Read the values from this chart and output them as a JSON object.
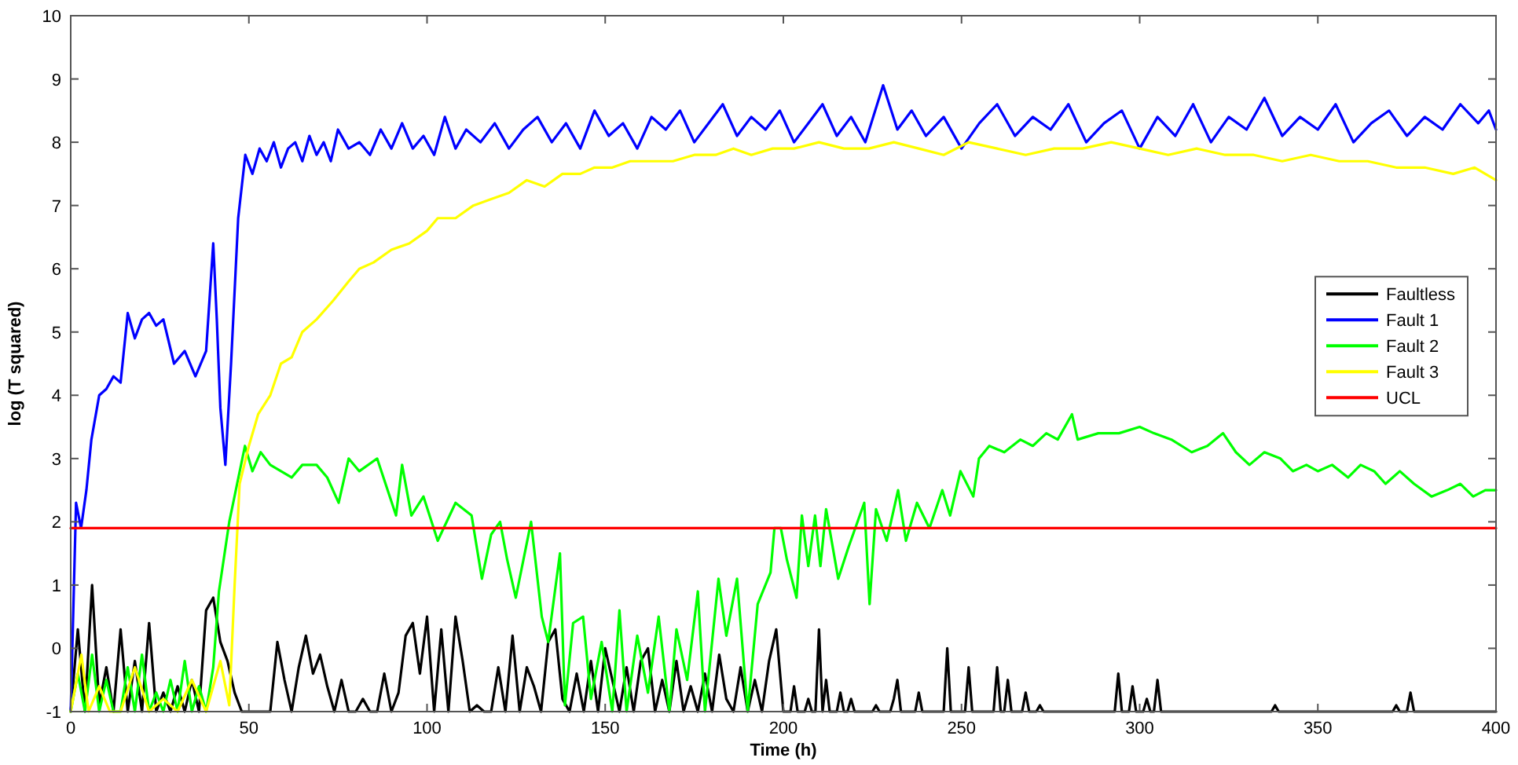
{
  "chart_data": {
    "type": "line",
    "xlabel": "Time (h)",
    "ylabel": "log (T squared)",
    "xlim": [
      0,
      400
    ],
    "xticks": [
      0,
      50,
      100,
      150,
      200,
      250,
      300,
      350,
      400
    ],
    "ylim": [
      -1,
      10
    ],
    "yticks": [
      -1,
      0,
      1,
      2,
      3,
      4,
      5,
      6,
      7,
      8,
      9,
      10
    ],
    "legend": "right",
    "line_style": "solid",
    "series": [
      {
        "name": "Faultless",
        "color": "#000000",
        "x": [
          0,
          2,
          4,
          6,
          8,
          10,
          12,
          14,
          16,
          18,
          20,
          22,
          24,
          26,
          28,
          30,
          32,
          34,
          36,
          38,
          40,
          42,
          44,
          46,
          48,
          50,
          52,
          54,
          56,
          58,
          60,
          62,
          64,
          66,
          68,
          70,
          72,
          74,
          76,
          78,
          80,
          82,
          84,
          86,
          88,
          90,
          92,
          94,
          96,
          98,
          100,
          102,
          104,
          106,
          108,
          110,
          112,
          114,
          116,
          118,
          120,
          122,
          124,
          126,
          128,
          130,
          132,
          134,
          136,
          138,
          140,
          142,
          144,
          146,
          148,
          150,
          152,
          154,
          156,
          158,
          160,
          162,
          164,
          166,
          168,
          170,
          172,
          174,
          176,
          178,
          180,
          182,
          184,
          186,
          188,
          190,
          192,
          194,
          196,
          198,
          200,
          202,
          203,
          204,
          206,
          207,
          208,
          209,
          210,
          211,
          212,
          213,
          215,
          216,
          217,
          218,
          219,
          220,
          225,
          226,
          227,
          230,
          231,
          232,
          233,
          237,
          238,
          239,
          245,
          246,
          247,
          251,
          252,
          253,
          259,
          260,
          261,
          262,
          263,
          264,
          267,
          268,
          269,
          271,
          272,
          273,
          293,
          294,
          295,
          297,
          298,
          299,
          301,
          302,
          303,
          304,
          305,
          306,
          337,
          338,
          339,
          371,
          372,
          373,
          375,
          376,
          377,
          400
        ],
        "values": [
          -1,
          0.3,
          -1,
          1.0,
          -0.9,
          -0.3,
          -1,
          0.3,
          -1,
          -0.2,
          -1,
          0.4,
          -1,
          -0.7,
          -1,
          -0.6,
          -1,
          -0.5,
          -1,
          0.6,
          0.8,
          0.1,
          -0.2,
          -0.7,
          -1,
          -1,
          -1,
          -1,
          -1,
          0.1,
          -0.5,
          -1,
          -0.3,
          0.2,
          -0.4,
          -0.1,
          -0.6,
          -1,
          -0.5,
          -1,
          -1,
          -0.8,
          -1,
          -1,
          -0.4,
          -1,
          -0.7,
          0.2,
          0.4,
          -0.4,
          0.5,
          -1,
          0.3,
          -1,
          0.5,
          -0.2,
          -1,
          -0.9,
          -1,
          -1,
          -0.3,
          -1,
          0.2,
          -1,
          -0.3,
          -0.6,
          -1,
          0.1,
          0.3,
          -0.8,
          -1,
          -0.4,
          -1,
          -0.2,
          -1,
          0.0,
          -0.5,
          -1,
          -0.3,
          -1,
          -0.2,
          0.0,
          -1,
          -0.5,
          -1,
          -0.2,
          -1,
          -0.6,
          -1,
          -0.4,
          -1,
          -0.1,
          -0.8,
          -1,
          -0.3,
          -1,
          -0.5,
          -1,
          -0.2,
          0.3,
          -1,
          -1,
          -0.6,
          -1,
          -1,
          -0.8,
          -1,
          -1,
          0.3,
          -1,
          -0.5,
          -1,
          -1,
          -0.7,
          -1,
          -1,
          -0.8,
          -1,
          -1,
          -0.9,
          -1,
          -1,
          -0.8,
          -0.5,
          -1,
          -1,
          -0.7,
          -1,
          -1,
          0.0,
          -1,
          -1,
          -0.3,
          -1,
          -1,
          -0.3,
          -1,
          -1,
          -0.5,
          -1,
          -1,
          -0.7,
          -1,
          -1,
          -0.9,
          -1,
          -1,
          -0.4,
          -1,
          -1,
          -0.6,
          -1,
          -1,
          -0.8,
          -1,
          -1,
          -0.5,
          -1,
          -1,
          -0.9,
          -1,
          -1,
          -0.9,
          -1,
          -1,
          -0.7,
          -1,
          -1
        ]
      },
      {
        "name": "Fault 1",
        "color": "#0000ff",
        "x": [
          0,
          1.5,
          2.9,
          4.4,
          5.8,
          8,
          10,
          12,
          14,
          16,
          18,
          20,
          22,
          24,
          26,
          29,
          32,
          35,
          38,
          40,
          41,
          42,
          43.4,
          45,
          47,
          49,
          51,
          53,
          55,
          57,
          59,
          61,
          63,
          65,
          67,
          69,
          71,
          73,
          75,
          78,
          81,
          84,
          87,
          90,
          93,
          96,
          99,
          102,
          105,
          108,
          111,
          115,
          119,
          123,
          127,
          131,
          135,
          139,
          143,
          147,
          151,
          155,
          159,
          163,
          167,
          171,
          175,
          179,
          183,
          187,
          191,
          195,
          199,
          203,
          207,
          211,
          215,
          219,
          223,
          228,
          232,
          236,
          240,
          245,
          250,
          255,
          260,
          265,
          270,
          275,
          280,
          285,
          290,
          295,
          300,
          305,
          310,
          315,
          320,
          325,
          330,
          335,
          340,
          345,
          350,
          355,
          360,
          365,
          370,
          375,
          380,
          385,
          390,
          395,
          398,
          400
        ],
        "values": [
          -1,
          2.3,
          1.9,
          2.5,
          3.3,
          4.0,
          4.1,
          4.3,
          4.2,
          5.3,
          4.9,
          5.2,
          5.3,
          5.1,
          5.2,
          4.5,
          4.7,
          4.3,
          4.7,
          6.4,
          5.2,
          3.8,
          2.9,
          4.5,
          6.8,
          7.8,
          7.5,
          7.9,
          7.7,
          8.0,
          7.6,
          7.9,
          8.0,
          7.7,
          8.1,
          7.8,
          8.0,
          7.7,
          8.2,
          7.9,
          8.0,
          7.8,
          8.2,
          7.9,
          8.3,
          7.9,
          8.1,
          7.8,
          8.4,
          7.9,
          8.2,
          8.0,
          8.3,
          7.9,
          8.2,
          8.4,
          8.0,
          8.3,
          7.9,
          8.5,
          8.1,
          8.3,
          7.9,
          8.4,
          8.2,
          8.5,
          8.0,
          8.3,
          8.6,
          8.1,
          8.4,
          8.2,
          8.5,
          8.0,
          8.3,
          8.6,
          8.1,
          8.4,
          8.0,
          8.9,
          8.2,
          8.5,
          8.1,
          8.4,
          7.9,
          8.3,
          8.6,
          8.1,
          8.4,
          8.2,
          8.6,
          8.0,
          8.3,
          8.5,
          7.9,
          8.4,
          8.1,
          8.6,
          8.0,
          8.4,
          8.2,
          8.7,
          8.1,
          8.4,
          8.2,
          8.6,
          8.0,
          8.3,
          8.5,
          8.1,
          8.4,
          8.2,
          8.6,
          8.3,
          8.5,
          8.2
        ]
      },
      {
        "name": "Fault 2",
        "color": "#00ff00",
        "x": [
          0,
          2,
          4,
          6,
          8,
          10,
          12,
          14,
          16,
          18,
          20,
          22,
          24,
          26,
          28,
          30,
          32,
          34,
          36,
          38,
          40,
          41.6,
          44.5,
          46.7,
          48.9,
          51,
          53.3,
          56,
          59,
          62,
          65,
          69,
          72,
          75.2,
          78,
          81,
          86,
          91.3,
          93,
          95.6,
          99,
          103,
          108,
          112.5,
          115.4,
          118,
          120.5,
          122.5,
          124.9,
          129.2,
          132.2,
          134,
          137.3,
          138.7,
          141,
          143.8,
          146,
          149,
          152,
          154,
          156,
          159,
          162,
          165,
          168,
          170,
          173,
          176,
          178,
          181.8,
          184,
          187,
          190,
          192.8,
          196.4,
          197.5,
          199.3,
          201,
          203.7,
          205.2,
          207,
          208.9,
          210.4,
          212,
          215.4,
          218.3,
          222.7,
          224.2,
          226,
          229,
          232.2,
          234.4,
          237.5,
          241,
          244.6,
          246.8,
          249.7,
          253.3,
          254.9,
          257.8,
          262,
          266.5,
          270,
          273.8,
          277,
          281,
          282.6,
          288.4,
          294.2,
          300,
          304,
          308.9,
          314.6,
          319,
          323.4,
          327,
          330.8,
          335,
          339.5,
          343,
          346.8,
          350,
          354,
          358.5,
          362,
          365.8,
          369,
          373,
          377,
          381.9,
          386.3,
          390,
          393.6,
          397,
          400
        ],
        "values": [
          -1,
          -0.4,
          -1,
          -0.1,
          -1,
          -0.5,
          -1,
          -1,
          -0.3,
          -1,
          -0.1,
          -1,
          -0.7,
          -1,
          -0.5,
          -1,
          -0.2,
          -1,
          -0.6,
          -1,
          -0.3,
          0.9,
          2.0,
          2.6,
          3.2,
          2.8,
          3.1,
          2.9,
          2.8,
          2.7,
          2.9,
          2.9,
          2.7,
          2.3,
          3.0,
          2.8,
          3.0,
          2.1,
          2.9,
          2.1,
          2.4,
          1.7,
          2.3,
          2.1,
          1.1,
          1.8,
          2.0,
          1.4,
          0.8,
          2.0,
          0.5,
          0.1,
          1.5,
          -0.9,
          0.4,
          0.5,
          -0.8,
          0.1,
          -1,
          0.6,
          -1,
          0.2,
          -0.7,
          0.5,
          -1,
          0.3,
          -0.5,
          0.9,
          -1,
          1.1,
          0.2,
          1.1,
          -1,
          0.7,
          1.2,
          1.9,
          1.9,
          1.4,
          0.8,
          2.1,
          1.3,
          2.1,
          1.3,
          2.2,
          1.1,
          1.6,
          2.3,
          0.7,
          2.2,
          1.7,
          2.5,
          1.7,
          2.3,
          1.9,
          2.5,
          2.1,
          2.8,
          2.4,
          3.0,
          3.2,
          3.1,
          3.3,
          3.2,
          3.4,
          3.3,
          3.7,
          3.3,
          3.4,
          3.4,
          3.5,
          3.4,
          3.3,
          3.1,
          3.2,
          3.4,
          3.1,
          2.9,
          3.1,
          3.0,
          2.8,
          2.9,
          2.8,
          2.9,
          2.7,
          2.9,
          2.8,
          2.6,
          2.8,
          2.6,
          2.4,
          2.5,
          2.6,
          2.4,
          2.5,
          2.5
        ]
      },
      {
        "name": "Fault 3",
        "color": "#ffff00",
        "x": [
          0,
          3,
          5,
          8,
          11,
          14,
          18,
          22,
          26,
          30,
          34,
          38,
          42,
          44.5,
          46,
          47.4,
          50,
          52.6,
          56,
          59,
          62,
          65,
          69,
          73.7,
          78,
          81,
          85,
          90,
          95,
          100,
          103,
          108,
          113,
          118,
          123,
          128,
          133,
          138,
          143,
          147,
          152,
          157,
          163,
          169,
          175,
          181,
          186,
          191,
          197,
          203,
          210,
          217,
          224,
          231,
          238,
          245,
          252,
          260,
          268,
          276,
          284,
          292,
          300,
          308,
          316,
          324,
          332,
          340,
          348,
          356,
          364,
          372,
          380,
          388,
          394,
          400
        ],
        "values": [
          -1,
          -0.1,
          -1,
          -0.6,
          -1,
          -1,
          -0.3,
          -1,
          -0.8,
          -1,
          -0.5,
          -1,
          -0.2,
          -0.9,
          1.0,
          2.6,
          3.2,
          3.7,
          4.0,
          4.5,
          4.6,
          5.0,
          5.2,
          5.5,
          5.8,
          6.0,
          6.1,
          6.3,
          6.4,
          6.6,
          6.8,
          6.8,
          7.0,
          7.1,
          7.2,
          7.4,
          7.3,
          7.5,
          7.5,
          7.6,
          7.6,
          7.7,
          7.7,
          7.7,
          7.8,
          7.8,
          7.9,
          7.8,
          7.9,
          7.9,
          8.0,
          7.9,
          7.9,
          8.0,
          7.9,
          7.8,
          8.0,
          7.9,
          7.8,
          7.9,
          7.9,
          8.0,
          7.9,
          7.8,
          7.9,
          7.8,
          7.8,
          7.7,
          7.8,
          7.7,
          7.7,
          7.6,
          7.6,
          7.5,
          7.6,
          7.4
        ]
      },
      {
        "name": "UCL",
        "color": "#ff0000",
        "x": [
          0,
          400
        ],
        "values": [
          1.9,
          1.9
        ]
      }
    ]
  }
}
